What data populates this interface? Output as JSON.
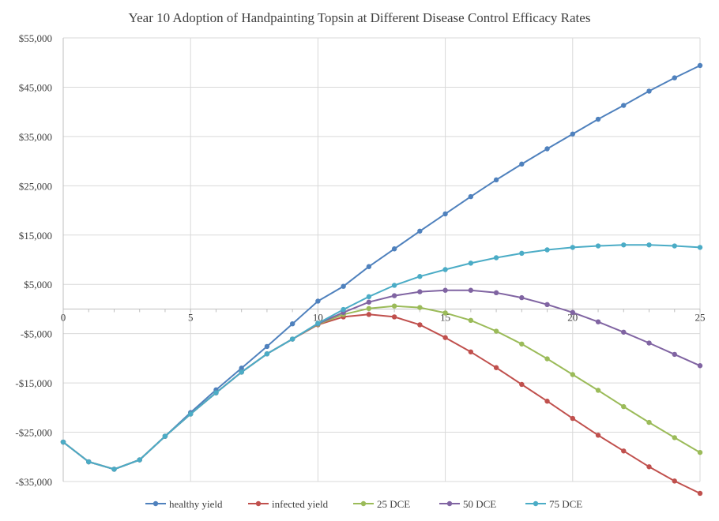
{
  "chart_data": {
    "type": "line",
    "title": "Year 10 Adoption of Handpainting  Topsin at Different Disease  Control Efficacy  Rates",
    "xlabel": "",
    "ylabel": "",
    "xlim": [
      0,
      25
    ],
    "ylim": [
      -35000,
      55000
    ],
    "x_ticks": [
      0,
      5,
      10,
      15,
      20,
      25
    ],
    "y_ticks": [
      55000,
      45000,
      35000,
      25000,
      15000,
      5000,
      -5000,
      -15000,
      -25000,
      -35000
    ],
    "y_tick_labels": [
      "$55,000",
      "$45,000",
      "$35,000",
      "$25,000",
      "$15,000",
      "$5,000",
      "-$5,000",
      "-$15,000",
      "-$25,000",
      "-$35,000"
    ],
    "x_tick_labels": [
      "0",
      "5",
      "10",
      "15",
      "20",
      "25"
    ],
    "grid": "vertical and horizontal",
    "legend_position": "bottom",
    "x": [
      0,
      1,
      2,
      3,
      4,
      5,
      6,
      7,
      8,
      9,
      10,
      11,
      12,
      13,
      14,
      15,
      16,
      17,
      18,
      19,
      20,
      21,
      22,
      23,
      24,
      25
    ],
    "series": [
      {
        "name": "healthy yield",
        "color": "#4f81bd",
        "values": [
          -27000,
          -31000,
          -32500,
          -30600,
          -25800,
          -21000,
          -16400,
          -12000,
          -7600,
          -3000,
          1600,
          4600,
          8600,
          12200,
          15800,
          19300,
          22800,
          26200,
          29400,
          32500,
          35500,
          38500,
          41300,
          44200,
          46900,
          49400
        ]
      },
      {
        "name": "infected yield",
        "color": "#c0504d",
        "values": [
          -27000,
          -31000,
          -32500,
          -30600,
          -25800,
          -21300,
          -17000,
          -12800,
          -9100,
          -6100,
          -3200,
          -1600,
          -1100,
          -1600,
          -3200,
          -5800,
          -8700,
          -11900,
          -15300,
          -18700,
          -22200,
          -25600,
          -28800,
          -32000,
          -34900,
          -37400
        ]
      },
      {
        "name": "25 DCE",
        "color": "#9bbb59",
        "values": [
          -27000,
          -31000,
          -32500,
          -30600,
          -25800,
          -21300,
          -17000,
          -12800,
          -9100,
          -6100,
          -3100,
          -1100,
          100,
          600,
          300,
          -800,
          -2300,
          -4500,
          -7100,
          -10100,
          -13300,
          -16500,
          -19800,
          -23000,
          -26100,
          -29100
        ]
      },
      {
        "name": "50 DCE",
        "color": "#8064a2",
        "values": [
          -27000,
          -31000,
          -32500,
          -30600,
          -25800,
          -21300,
          -17000,
          -12800,
          -9100,
          -6100,
          -3000,
          -700,
          1400,
          2700,
          3500,
          3800,
          3800,
          3300,
          2300,
          900,
          -700,
          -2600,
          -4700,
          -6900,
          -9200,
          -11500
        ]
      },
      {
        "name": "75 DCE",
        "color": "#4bacc6",
        "values": [
          -27000,
          -31000,
          -32500,
          -30600,
          -25800,
          -21300,
          -17000,
          -12800,
          -9100,
          -6100,
          -2900,
          -100,
          2500,
          4800,
          6600,
          8000,
          9300,
          10400,
          11300,
          12000,
          12500,
          12800,
          13000,
          13000,
          12800,
          12500
        ]
      }
    ]
  }
}
